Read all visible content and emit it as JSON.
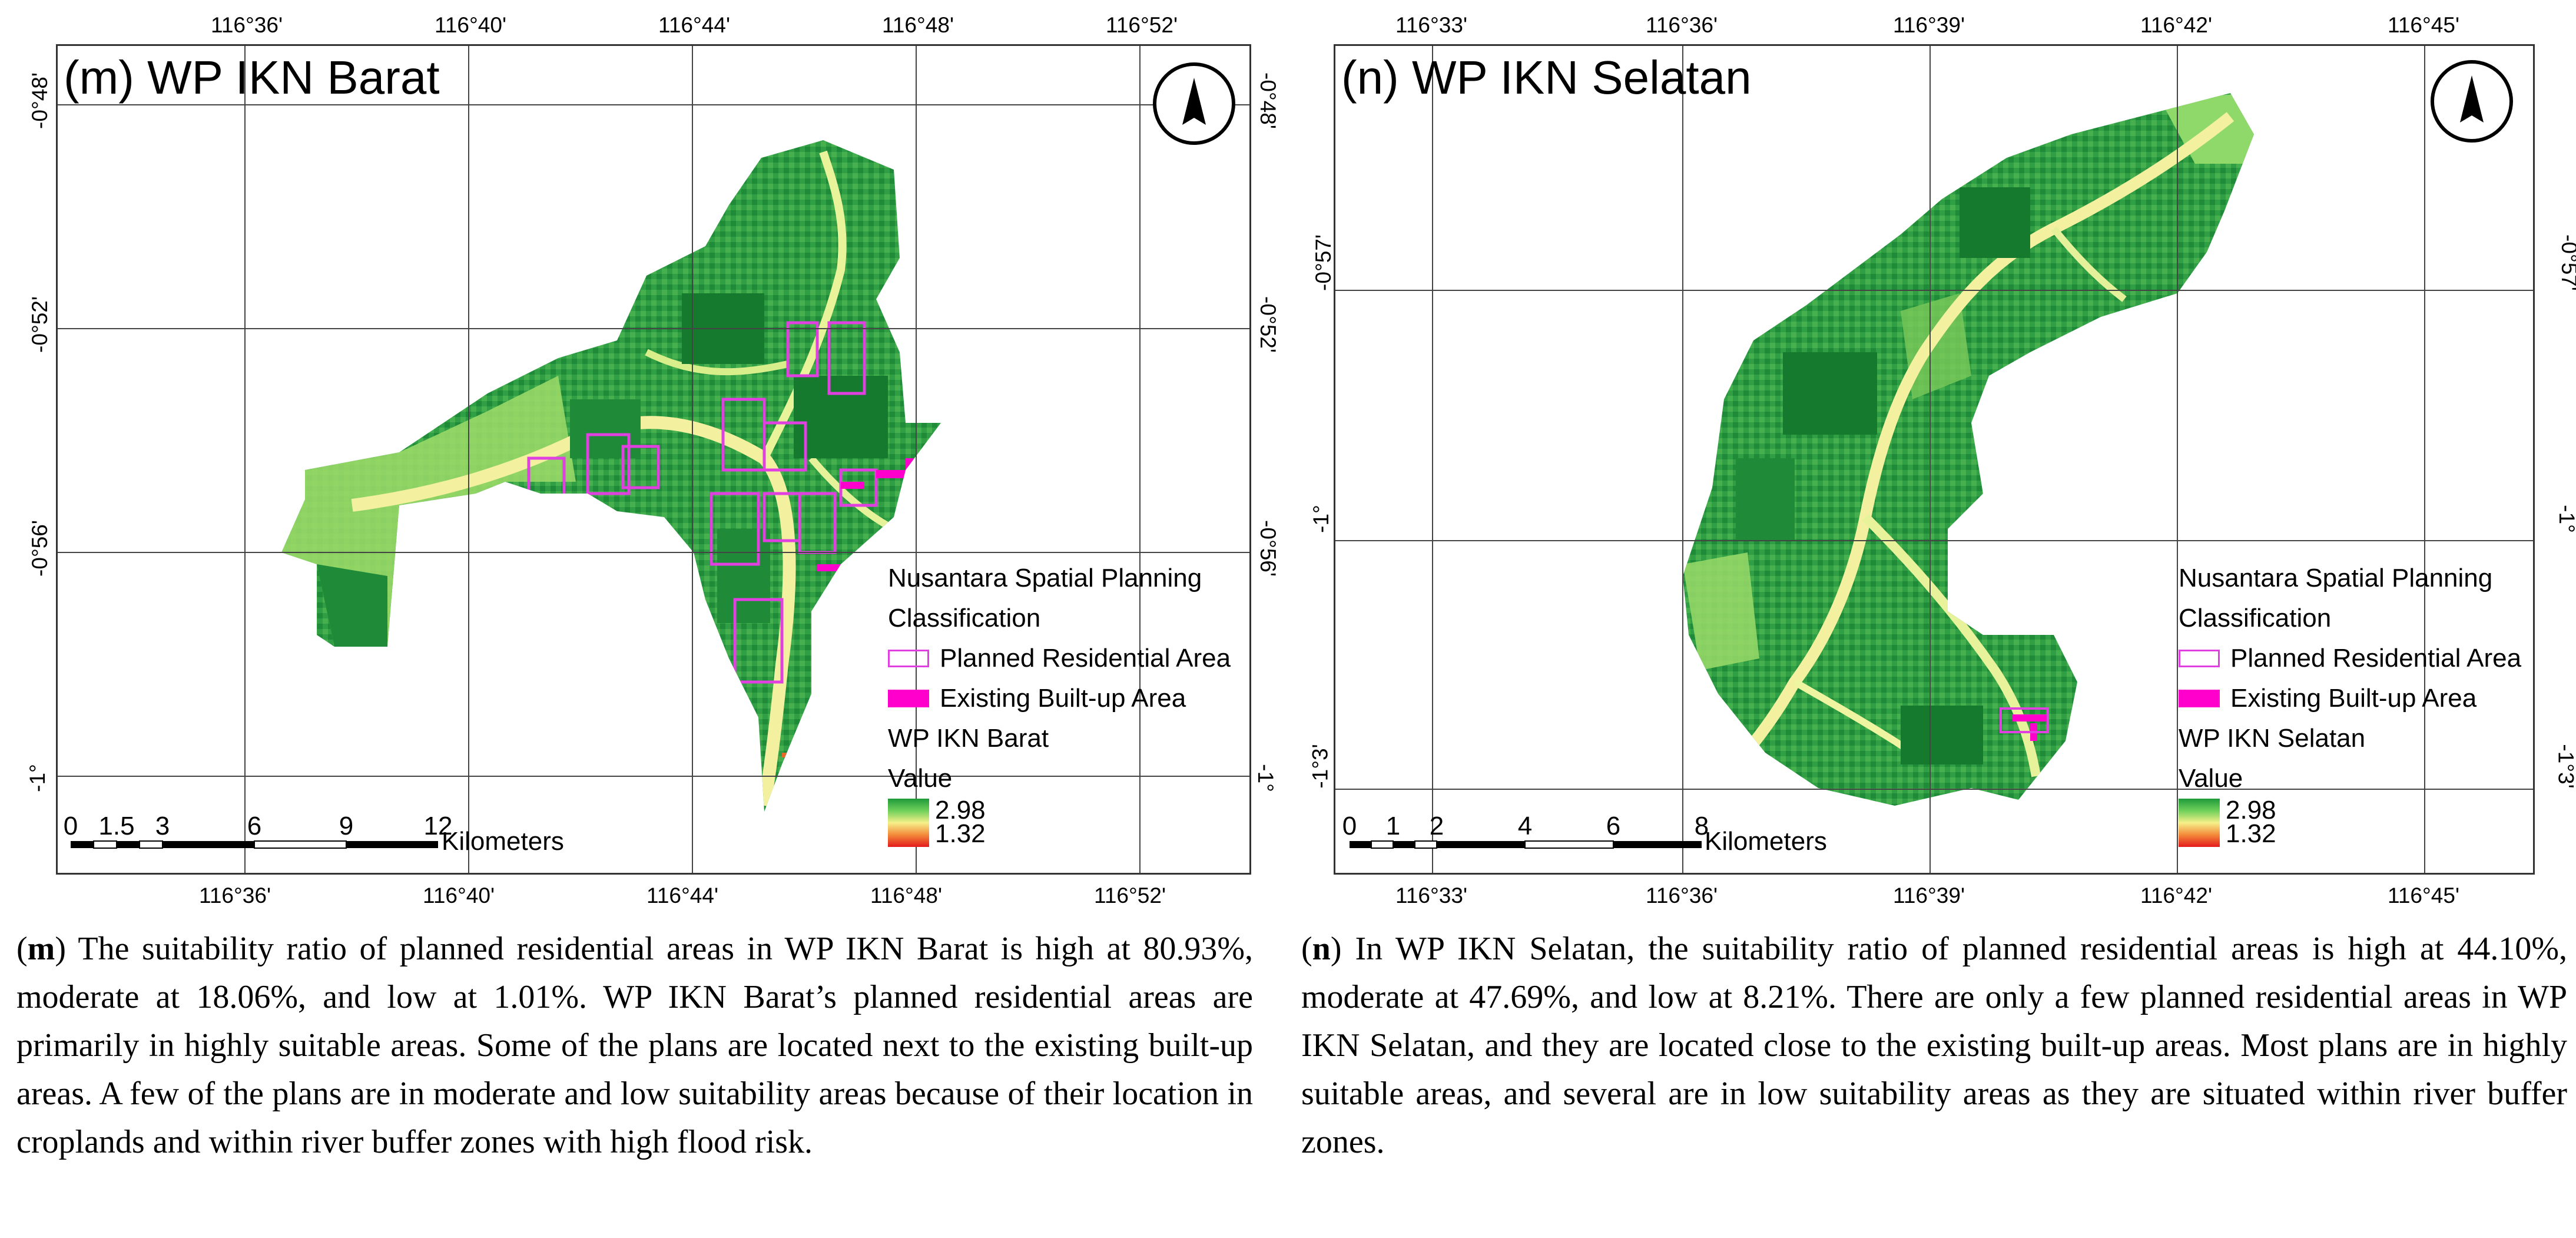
{
  "panels": [
    {
      "title": "(m) WP IKN Barat",
      "x_ticks": [
        "116°36'",
        "116°40'",
        "116°44'",
        "116°48'",
        "116°52'"
      ],
      "y_ticks": [
        "-0°48'",
        "-0°52'",
        "-0°56'",
        "-1°"
      ],
      "legend": {
        "heading_line1": "Nusantara Spatial Planning",
        "heading_line2": "Classification",
        "planned": "Planned Residential Area",
        "existing": "Existing Built-up Area",
        "layer": "WP IKN Barat",
        "value_label": "Value",
        "high": "2.98",
        "low": "1.32"
      },
      "scale": {
        "ticks": [
          "0",
          "1.5",
          "3",
          "6",
          "9",
          "12"
        ],
        "unit": "Kilometers"
      },
      "caption_label": "m",
      "caption_text": "The suitability ratio of planned residential areas in WP IKN Barat is high at 80.93%, moderate at 18.06%, and low at 1.01%. WP IKN Barat’s planned residential areas are primarily in highly suitable areas. Some of the plans are located next to the existing built-up areas. A few of the plans are in moderate and low suitability areas because of their location in croplands and within river buffer zones with high flood risk."
    },
    {
      "title": "(n) WP IKN Selatan",
      "x_ticks": [
        "116°33'",
        "116°36'",
        "116°39'",
        "116°42'",
        "116°45'"
      ],
      "y_ticks": [
        "-0°57'",
        "-1°",
        "-1°3'"
      ],
      "legend": {
        "heading_line1": "Nusantara Spatial Planning",
        "heading_line2": "Classification",
        "planned": "Planned Residential Area",
        "existing": "Existing Built-up Area",
        "layer": "WP IKN Selatan",
        "value_label": "Value",
        "high": "2.98",
        "low": "1.32"
      },
      "scale": {
        "ticks": [
          "0",
          "1",
          "2",
          "4",
          "6",
          "8"
        ],
        "unit": "Kilometers"
      },
      "caption_label": "n",
      "caption_text": "In WP IKN Selatan, the suitability ratio of planned residential areas is high at 44.10%, moderate at 47.69%, and low at 8.21%. There are only a few planned residential areas in WP IKN Selatan, and they are located close to the existing built-up areas. Most plans are in highly suitable areas, and several are in low suitability areas as they are situated within river buffer zones."
    }
  ],
  "colors": {
    "high": "#1e9a3a",
    "mid": "#6fd05a",
    "pale": "#f6f08a",
    "low": "#e41a1c",
    "planned": "#e040e0",
    "existing": "#ff00cc",
    "grid": "#444444"
  },
  "icons": [
    "north-arrow-icon"
  ]
}
